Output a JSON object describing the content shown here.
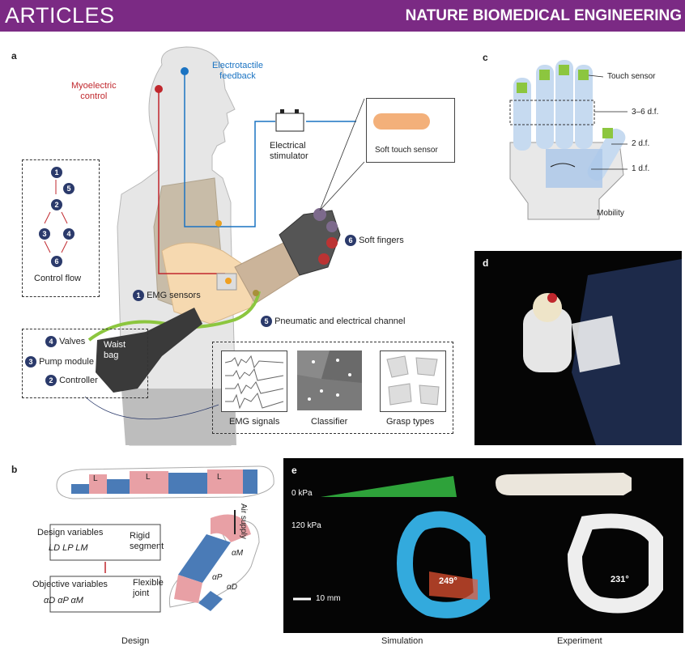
{
  "header": {
    "left": "ARTICLES",
    "right": "NATURE BIOMEDICAL ENGINEERING"
  },
  "panel_a": {
    "label": "a",
    "myoelectric": [
      "Myoelectric",
      "control"
    ],
    "electrotactile": [
      "Electrotactile",
      "feedback"
    ],
    "stimulator": [
      "Electrical",
      "stimulator"
    ],
    "touch_sensor": "Soft touch sensor",
    "soft_fingers": "Soft fingers",
    "emg_sensors": "EMG sensors",
    "channel": "Pneumatic and electrical channel",
    "waist_bag": [
      "Waist",
      "bag"
    ],
    "valves": "Valves",
    "pump": "Pump module",
    "controller": "Controller",
    "control_flow": "Control flow",
    "flow_nums": [
      "1",
      "5",
      "2",
      "3",
      "4",
      "6"
    ],
    "num_emg": "1",
    "num_fingers": "6",
    "num_channel": "5",
    "num_valves": "4",
    "num_pump": "3",
    "num_controller": "2",
    "emg_signals": "EMG signals",
    "classifier": "Classifier",
    "grasp_types": "Grasp types"
  },
  "panel_b": {
    "label": "b",
    "ld": "L",
    "ld_sub": "D",
    "lp": "L",
    "lp_sub": "P",
    "lm": "L",
    "lm_sub": "M",
    "design_vars": "Design variables",
    "design_vals": "L",
    "design_vals_text": "LD  LP  LM",
    "objective_vars": "Objective variables",
    "objective_vals": "αD  αP  αM",
    "rigid": [
      "Rigid",
      "segment"
    ],
    "flexible": [
      "Flexible",
      "joint"
    ],
    "air": "Air supply",
    "alpha_m": "αM",
    "alpha_p": "αP",
    "alpha_d": "αD",
    "caption": "Design"
  },
  "panel_c": {
    "label": "c",
    "touch": "Touch sensor",
    "dof_36": "3–6 d.f.",
    "dof_2": "2 d.f.",
    "dof_1": "1 d.f.",
    "mobility": "Mobility"
  },
  "panel_d": {
    "label": "d"
  },
  "panel_e": {
    "label": "e",
    "zero": "0 kPa",
    "p120": "120 kPa",
    "sim_angle": "249°",
    "exp_angle": "231°",
    "scale": "10 mm",
    "sim_caption": "Simulation",
    "exp_caption": "Experiment"
  },
  "colors": {
    "purple": "#7b2a84",
    "navy": "#2b3a6b",
    "red": "#c0272d",
    "blue": "#1a73c2",
    "green": "#8cc63f",
    "pink": "#e8a0a5",
    "steel": "#4a7bb7"
  }
}
